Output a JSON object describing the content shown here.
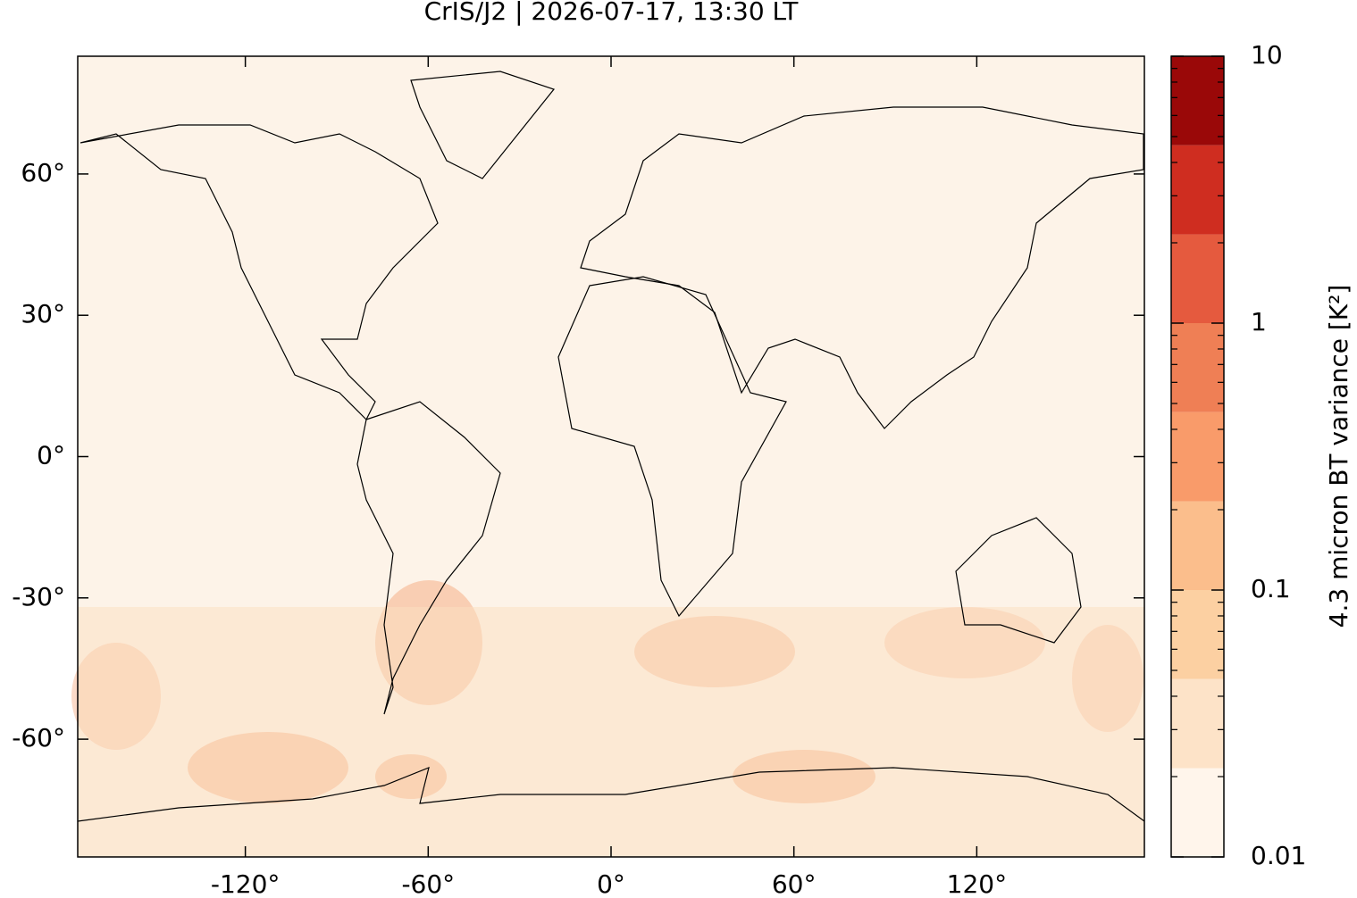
{
  "chart_data": {
    "type": "map",
    "title": "CrIS/J2 | 2026-07-17, 13:30 LT",
    "xlim": [
      -175,
      175
    ],
    "ylim": [
      -85,
      85
    ],
    "xticks": [
      {
        "value": -120,
        "label": "-120°"
      },
      {
        "value": -60,
        "label": "-60°"
      },
      {
        "value": 0,
        "label": "0°"
      },
      {
        "value": 60,
        "label": "60°"
      },
      {
        "value": 120,
        "label": "120°"
      }
    ],
    "yticks": [
      {
        "value": -60,
        "label": "-60°"
      },
      {
        "value": -30,
        "label": "-30°"
      },
      {
        "value": 0,
        "label": "0°"
      },
      {
        "value": 30,
        "label": "30°"
      },
      {
        "value": 60,
        "label": "60°"
      }
    ],
    "colorbar": {
      "label": "4.3 micron BT variance [K²]",
      "scale": "log",
      "lim": [
        0.01,
        10
      ],
      "ticks": [
        0.01,
        0.1,
        1,
        10
      ],
      "minor_ticks": [
        0.02,
        0.03,
        0.04,
        0.05,
        0.06,
        0.07,
        0.08,
        0.09,
        0.2,
        0.3,
        0.4,
        0.5,
        0.6,
        0.7,
        0.8,
        0.9,
        2,
        3,
        4,
        5,
        6,
        7,
        8,
        9
      ],
      "levels": [
        0.01,
        0.0215,
        0.0464,
        0.1,
        0.215,
        0.464,
        1,
        2.15,
        4.64,
        10
      ],
      "colors": [
        "#fff5eb",
        "#fde3c8",
        "#fcd0a2",
        "#fbbe8c",
        "#f99b6a",
        "#ef7f55",
        "#e55a3e",
        "#cf2d20",
        "#9a0808"
      ]
    }
  }
}
